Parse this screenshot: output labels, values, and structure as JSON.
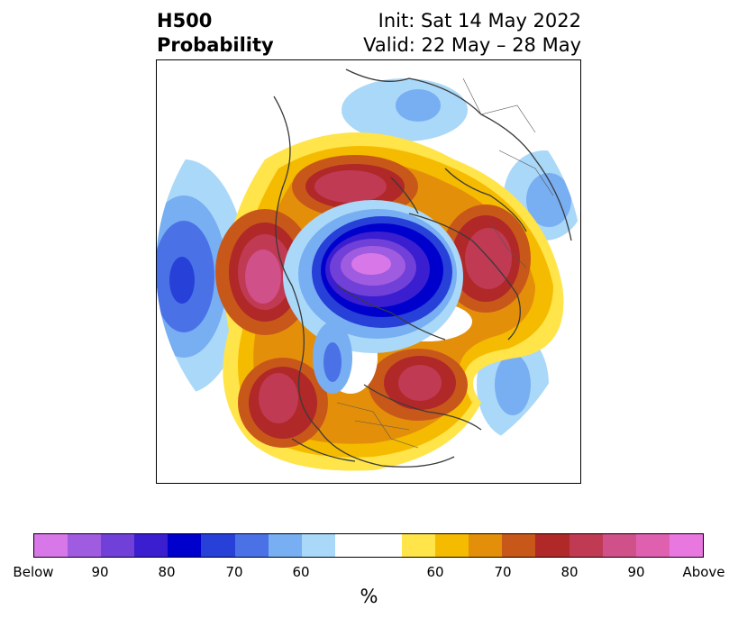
{
  "title": {
    "left_line1": "H500",
    "left_line2": "Probability",
    "right_line1": "Init: Sat 14 May 2022",
    "right_line2": "Valid: 22 May – 28 May"
  },
  "colorbar": {
    "colors": [
      "#d878e8",
      "#a05ce0",
      "#7040d8",
      "#3a1ed0",
      "#0000cc",
      "#2740d8",
      "#4a72e6",
      "#78aef2",
      "#aad8f8",
      "#ffffff",
      "#ffffff",
      "#ffe44a",
      "#f5bb00",
      "#e48f0a",
      "#c8581a",
      "#b02828",
      "#c03a54",
      "#d0508a",
      "#e060b0",
      "#e878e0"
    ],
    "tick_labels": [
      "Below",
      "90",
      "80",
      "70",
      "60",
      "60",
      "70",
      "80",
      "90",
      "Above"
    ],
    "unit": "%"
  },
  "map": {
    "projection": "north polar stereographic",
    "below_normal_colors": {
      "light": "#aad8f8",
      "mid": "#78aef2",
      "blue": "#4a72e6",
      "deep": "#0000cc",
      "indigo": "#3a1ed0",
      "violet": "#7040d8",
      "purple": "#a05ce0",
      "pink": "#d878e8"
    },
    "above_normal_colors": {
      "yellow": "#ffe44a",
      "gold": "#f5bb00",
      "orange": "#e48f0a",
      "rust": "#c8581a",
      "red": "#b02828",
      "crimson": "#c03a54",
      "rose": "#d0508a",
      "magenta": "#e060b0"
    }
  }
}
